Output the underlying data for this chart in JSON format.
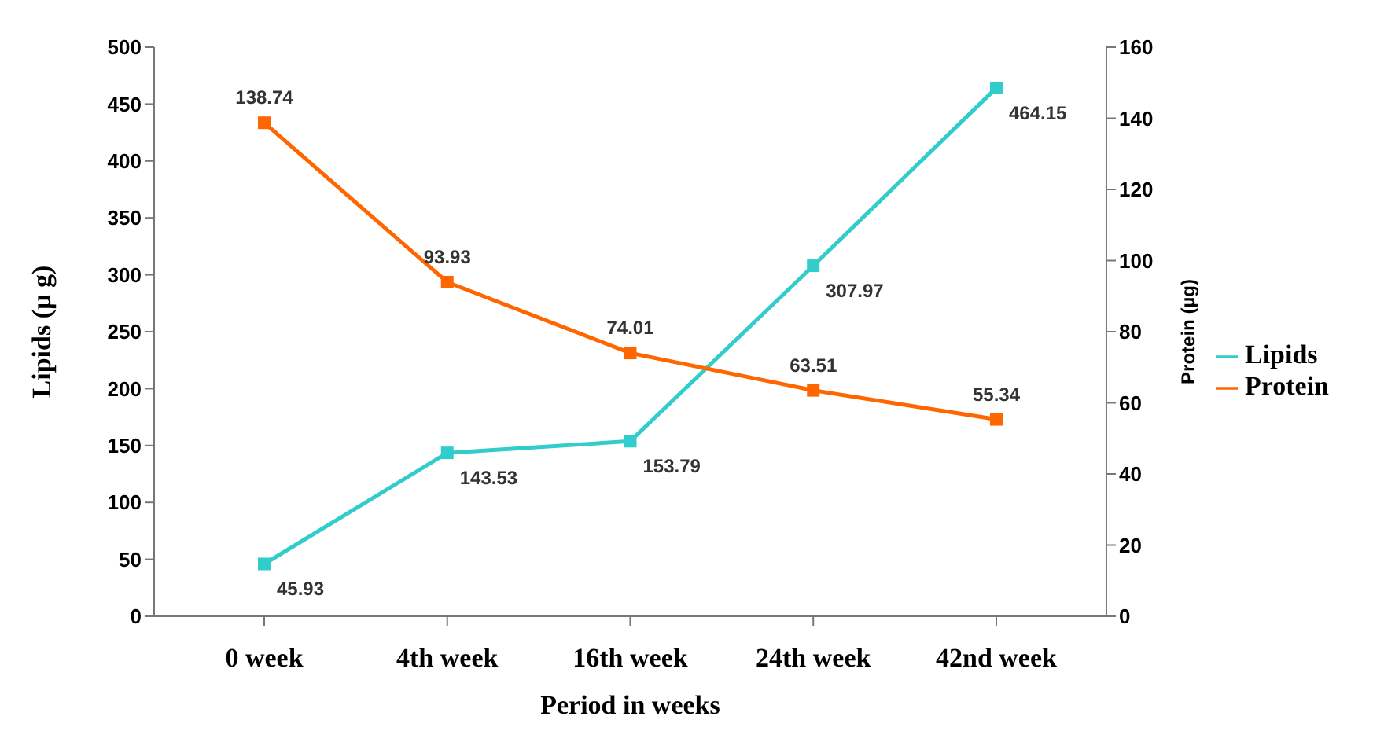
{
  "chart_data": {
    "type": "line",
    "xlabel": "Period in weeks",
    "ylabel": "Lipids (µ g)",
    "y2label": "Protein (µg)",
    "categories": [
      "0 week",
      "4th week",
      "16th week",
      "24th week",
      "42nd week"
    ],
    "series": [
      {
        "name": "Lipids",
        "color": "#33cccc",
        "values": [
          45.93,
          143.53,
          153.79,
          307.97,
          464.15
        ]
      },
      {
        "name": "Protein",
        "color": "#ff6600",
        "values": [
          138.74,
          93.93,
          74.01,
          63.51,
          55.34
        ],
        "axis": "y2"
      }
    ],
    "ylim": [
      0,
      500
    ],
    "yticks": [
      0,
      50,
      100,
      150,
      200,
      250,
      300,
      350,
      400,
      450,
      500
    ],
    "y2lim": [
      0,
      160
    ],
    "y2ticks": [
      0,
      20,
      40,
      60,
      80,
      100,
      120,
      140,
      160
    ],
    "data_labels": true,
    "legend": "right",
    "grid": false,
    "marker": "square",
    "line_style": "solid"
  }
}
